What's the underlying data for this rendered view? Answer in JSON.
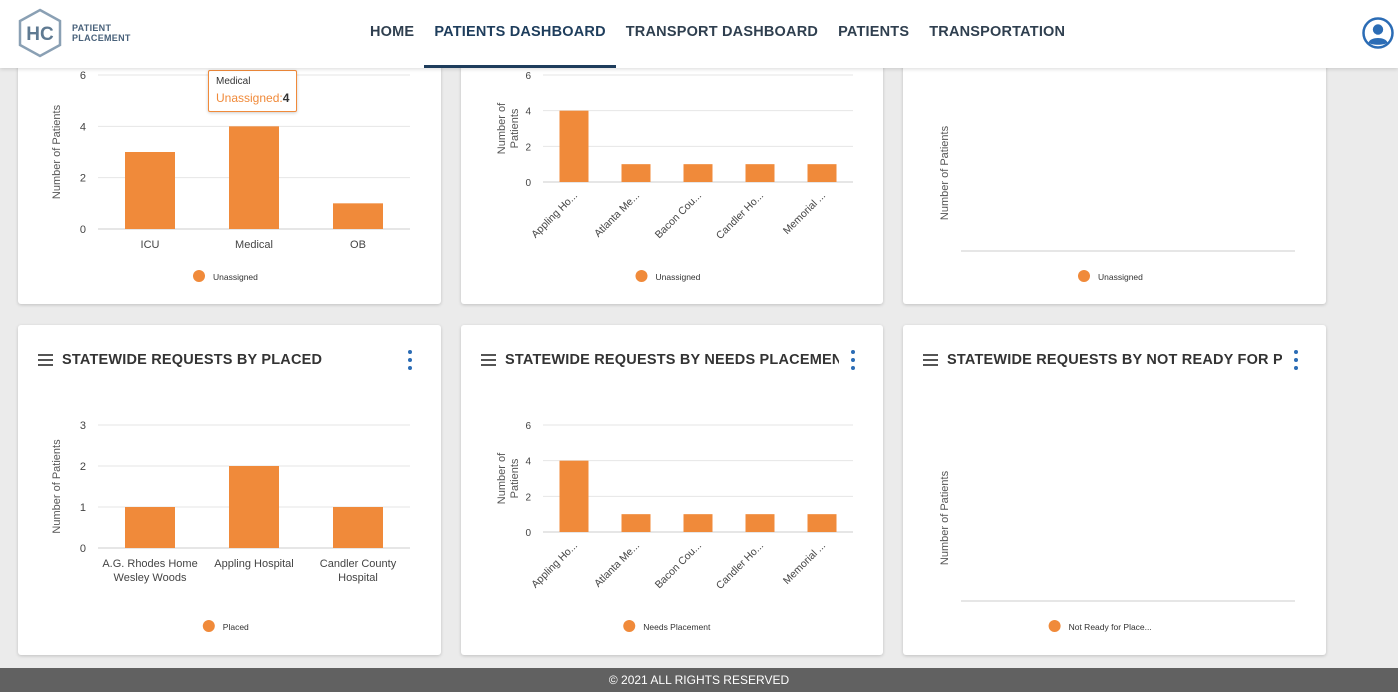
{
  "header": {
    "logo_initials": "HC",
    "logo_line1": "PATIENT",
    "logo_line2": "PLACEMENT",
    "nav": [
      "HOME",
      "PATIENTS DASHBOARD",
      "TRANSPORT DASHBOARD",
      "PATIENTS",
      "TRANSPORTATION"
    ],
    "active_nav": "PATIENTS DASHBOARD",
    "colors": {
      "nav_text": "#2f3f4f",
      "active": "#1e3d5c",
      "avatar": "#2b6cb5"
    }
  },
  "footer": {
    "text": "© 2021 ALL RIGHTS RESERVED"
  },
  "colors": {
    "bar": "#f08a3a",
    "kebab": "#2b6cb5"
  },
  "tooltip": {
    "category": "Medical",
    "series": "Unassigned",
    "value": "4"
  },
  "cards": [
    {
      "title": "",
      "has_header": false
    },
    {
      "title": "",
      "has_header": false
    },
    {
      "title": "",
      "has_header": false
    },
    {
      "title": "STATEWIDE REQUESTS BY PLACED",
      "has_header": true
    },
    {
      "title": "STATEWIDE REQUESTS BY NEEDS PLACEMENT",
      "has_header": true
    },
    {
      "title": "STATEWIDE REQUESTS BY NOT READY FOR PLACEMENT",
      "has_header": true
    }
  ],
  "chart_data": [
    {
      "type": "bar",
      "title": "",
      "ylabel": "Number of Patients",
      "categories": [
        "ICU",
        "Medical",
        "OB"
      ],
      "series": [
        {
          "name": "Unassigned",
          "values": [
            3,
            4,
            1
          ]
        }
      ],
      "ylim": [
        0,
        6
      ],
      "yticks": [
        0,
        2,
        4,
        6
      ],
      "grid": true,
      "legend": "bottom"
    },
    {
      "type": "bar",
      "title": "",
      "ylabel": "Number of Patients",
      "categories": [
        "Appling Ho...",
        "Atlanta Me...",
        "Bacon Cou...",
        "Candler Ho...",
        "Memorial ..."
      ],
      "series": [
        {
          "name": "Unassigned",
          "values": [
            4,
            1,
            1,
            1,
            1
          ]
        }
      ],
      "ylim": [
        0,
        6
      ],
      "yticks": [
        0,
        2,
        4,
        6
      ],
      "grid": true,
      "legend": "bottom"
    },
    {
      "type": "bar",
      "title": "",
      "ylabel": "Number of Patients",
      "categories": [],
      "series": [
        {
          "name": "Unassigned",
          "values": []
        }
      ],
      "grid": false,
      "legend": "bottom"
    },
    {
      "type": "bar",
      "title": "STATEWIDE REQUESTS BY PLACED",
      "ylabel": "Number of Patients",
      "categories": [
        "A.G. Rhodes Home Wesley Woods",
        "Appling Hospital",
        "Candler County Hospital"
      ],
      "series": [
        {
          "name": "Placed",
          "values": [
            1,
            2,
            1
          ]
        }
      ],
      "ylim": [
        0,
        3
      ],
      "yticks": [
        0,
        1,
        2,
        3
      ],
      "grid": true,
      "legend": "bottom"
    },
    {
      "type": "bar",
      "title": "STATEWIDE REQUESTS BY NEEDS PLACEMENT",
      "ylabel": "Number of Patients",
      "categories": [
        "Appling Ho...",
        "Atlanta Me...",
        "Bacon Cou...",
        "Candler Ho...",
        "Memorial ..."
      ],
      "series": [
        {
          "name": "Needs Placement",
          "values": [
            4,
            1,
            1,
            1,
            1
          ]
        }
      ],
      "ylim": [
        0,
        6
      ],
      "yticks": [
        0,
        2,
        4,
        6
      ],
      "grid": true,
      "legend": "bottom"
    },
    {
      "type": "bar",
      "title": "STATEWIDE REQUESTS BY NOT READY FOR PLACEMENT",
      "ylabel": "Number of Patients",
      "categories": [],
      "series": [
        {
          "name": "Not Ready for Place...",
          "values": []
        }
      ],
      "grid": false,
      "legend": "bottom"
    }
  ]
}
